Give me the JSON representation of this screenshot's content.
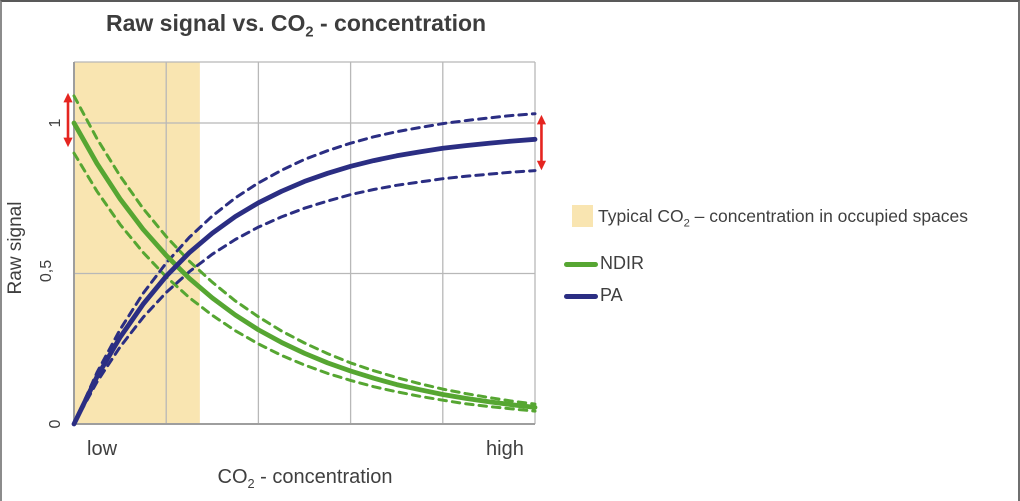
{
  "title": {
    "prefix": "Raw signal vs. CO",
    "sub": "2",
    "suffix": " - concentration"
  },
  "y_axis": {
    "label": "Raw signal",
    "ticks": [
      "0",
      "0,5",
      "1"
    ]
  },
  "x_axis": {
    "label_prefix": "CO",
    "label_sub": "2",
    "label_suffix": " - concentration",
    "tick_low": "low",
    "tick_high": "high"
  },
  "legend": {
    "band": {
      "prefix": "Typical CO",
      "sub": "2",
      "suffix": " – concentration in occupied spaces"
    },
    "ndir_label": "NDIR",
    "pa_label": "PA"
  },
  "colors": {
    "ndir": "#56a632",
    "pa": "#2b2e83",
    "band": "#f9e5b1",
    "arrow": "#e52520",
    "grid": "#b8b8b8",
    "axis": "#9e9e9e",
    "text": "#3f3f3f"
  },
  "chart_data": {
    "type": "line",
    "title": "Raw signal vs. CO2 - concentration",
    "xlabel": "CO2 - concentration",
    "ylabel": "Raw signal",
    "x_tick_labels": [
      "low",
      "high"
    ],
    "y_tick_values": [
      0,
      0.5,
      1
    ],
    "y_tick_labels": [
      "0",
      "0,5",
      "1"
    ],
    "xlim": [
      0,
      1
    ],
    "ylim": [
      0,
      1.2
    ],
    "grid": {
      "v": [
        0.2,
        0.4,
        0.6,
        0.8
      ],
      "h": [
        0.5,
        1.0
      ]
    },
    "band": {
      "label": "Typical CO2 – concentration in occupied spaces",
      "x_from": 0,
      "x_to": 0.273
    },
    "legend_position": "right",
    "series": [
      {
        "name": "NDIR upper band",
        "color_key": "ndir",
        "style": "dashed",
        "width": 3,
        "points": [
          [
            0,
            1.09
          ],
          [
            0.05,
            0.948
          ],
          [
            0.1,
            0.824
          ],
          [
            0.15,
            0.716
          ],
          [
            0.2,
            0.623
          ],
          [
            0.25,
            0.541
          ],
          [
            0.3,
            0.471
          ],
          [
            0.35,
            0.409
          ],
          [
            0.4,
            0.356
          ],
          [
            0.45,
            0.309
          ],
          [
            0.5,
            0.269
          ],
          [
            0.55,
            0.234
          ],
          [
            0.6,
            0.203
          ],
          [
            0.65,
            0.177
          ],
          [
            0.7,
            0.154
          ],
          [
            0.75,
            0.134
          ],
          [
            0.8,
            0.116
          ],
          [
            0.85,
            0.101
          ],
          [
            0.9,
            0.088
          ],
          [
            0.95,
            0.076
          ],
          [
            1.0,
            0.066
          ]
        ]
      },
      {
        "name": "NDIR lower band",
        "color_key": "ndir",
        "style": "dashed",
        "width": 3,
        "points": [
          [
            0,
            0.9
          ],
          [
            0.05,
            0.773
          ],
          [
            0.1,
            0.663
          ],
          [
            0.15,
            0.57
          ],
          [
            0.2,
            0.489
          ],
          [
            0.25,
            0.42
          ],
          [
            0.3,
            0.361
          ],
          [
            0.35,
            0.31
          ],
          [
            0.4,
            0.266
          ],
          [
            0.45,
            0.228
          ],
          [
            0.5,
            0.196
          ],
          [
            0.55,
            0.168
          ],
          [
            0.6,
            0.145
          ],
          [
            0.65,
            0.124
          ],
          [
            0.7,
            0.107
          ],
          [
            0.75,
            0.092
          ],
          [
            0.8,
            0.079
          ],
          [
            0.85,
            0.067
          ],
          [
            0.9,
            0.058
          ],
          [
            0.95,
            0.05
          ],
          [
            1.0,
            0.043
          ]
        ]
      },
      {
        "name": "PA upper band",
        "color_key": "pa",
        "style": "dashed",
        "width": 3,
        "points": [
          [
            0,
            0
          ],
          [
            0.05,
            0.171
          ],
          [
            0.1,
            0.314
          ],
          [
            0.15,
            0.434
          ],
          [
            0.2,
            0.535
          ],
          [
            0.25,
            0.62
          ],
          [
            0.3,
            0.691
          ],
          [
            0.35,
            0.751
          ],
          [
            0.4,
            0.801
          ],
          [
            0.45,
            0.843
          ],
          [
            0.5,
            0.879
          ],
          [
            0.55,
            0.908
          ],
          [
            0.6,
            0.933
          ],
          [
            0.65,
            0.954
          ],
          [
            0.7,
            0.971
          ],
          [
            0.75,
            0.985
          ],
          [
            0.8,
            0.998
          ],
          [
            0.85,
            1.008
          ],
          [
            0.9,
            1.017
          ],
          [
            0.95,
            1.025
          ],
          [
            1.0,
            1.031
          ]
        ]
      },
      {
        "name": "PA lower band",
        "color_key": "pa",
        "style": "dashed",
        "width": 3,
        "points": [
          [
            0,
            0
          ],
          [
            0.05,
            0.14
          ],
          [
            0.1,
            0.256
          ],
          [
            0.15,
            0.354
          ],
          [
            0.2,
            0.437
          ],
          [
            0.25,
            0.506
          ],
          [
            0.3,
            0.564
          ],
          [
            0.35,
            0.613
          ],
          [
            0.4,
            0.654
          ],
          [
            0.45,
            0.688
          ],
          [
            0.5,
            0.717
          ],
          [
            0.55,
            0.741
          ],
          [
            0.6,
            0.762
          ],
          [
            0.65,
            0.779
          ],
          [
            0.7,
            0.793
          ],
          [
            0.75,
            0.804
          ],
          [
            0.8,
            0.815
          ],
          [
            0.85,
            0.823
          ],
          [
            0.9,
            0.83
          ],
          [
            0.95,
            0.837
          ],
          [
            1.0,
            0.842
          ]
        ]
      },
      {
        "name": "NDIR",
        "color_key": "ndir",
        "style": "solid",
        "width": 4.8,
        "points": [
          [
            0,
            1.0
          ],
          [
            0.05,
            0.865
          ],
          [
            0.1,
            0.748
          ],
          [
            0.15,
            0.647
          ],
          [
            0.2,
            0.56
          ],
          [
            0.25,
            0.484
          ],
          [
            0.3,
            0.419
          ],
          [
            0.35,
            0.362
          ],
          [
            0.4,
            0.313
          ],
          [
            0.45,
            0.271
          ],
          [
            0.5,
            0.235
          ],
          [
            0.55,
            0.203
          ],
          [
            0.6,
            0.176
          ],
          [
            0.65,
            0.152
          ],
          [
            0.7,
            0.131
          ],
          [
            0.75,
            0.114
          ],
          [
            0.8,
            0.098
          ],
          [
            0.85,
            0.085
          ],
          [
            0.9,
            0.074
          ],
          [
            0.95,
            0.064
          ],
          [
            1.0,
            0.055
          ]
        ]
      },
      {
        "name": "PA",
        "color_key": "pa",
        "style": "solid",
        "width": 4.8,
        "points": [
          [
            0,
            0
          ],
          [
            0.05,
            0.157
          ],
          [
            0.1,
            0.288
          ],
          [
            0.15,
            0.398
          ],
          [
            0.2,
            0.491
          ],
          [
            0.25,
            0.569
          ],
          [
            0.3,
            0.634
          ],
          [
            0.35,
            0.689
          ],
          [
            0.4,
            0.735
          ],
          [
            0.45,
            0.773
          ],
          [
            0.5,
            0.806
          ],
          [
            0.55,
            0.833
          ],
          [
            0.6,
            0.856
          ],
          [
            0.65,
            0.875
          ],
          [
            0.7,
            0.891
          ],
          [
            0.75,
            0.904
          ],
          [
            0.8,
            0.916
          ],
          [
            0.85,
            0.925
          ],
          [
            0.9,
            0.933
          ],
          [
            0.95,
            0.94
          ],
          [
            1.0,
            0.946
          ]
        ]
      }
    ],
    "annotations": [
      {
        "name": "signal-range-arrow-low",
        "type": "vertical-double-arrow",
        "x": -0.013,
        "v_from": 0.92,
        "v_to": 1.1
      },
      {
        "name": "signal-range-arrow-high",
        "type": "vertical-double-arrow",
        "x": 1.014,
        "v_from": 0.843,
        "v_to": 1.027
      }
    ]
  }
}
